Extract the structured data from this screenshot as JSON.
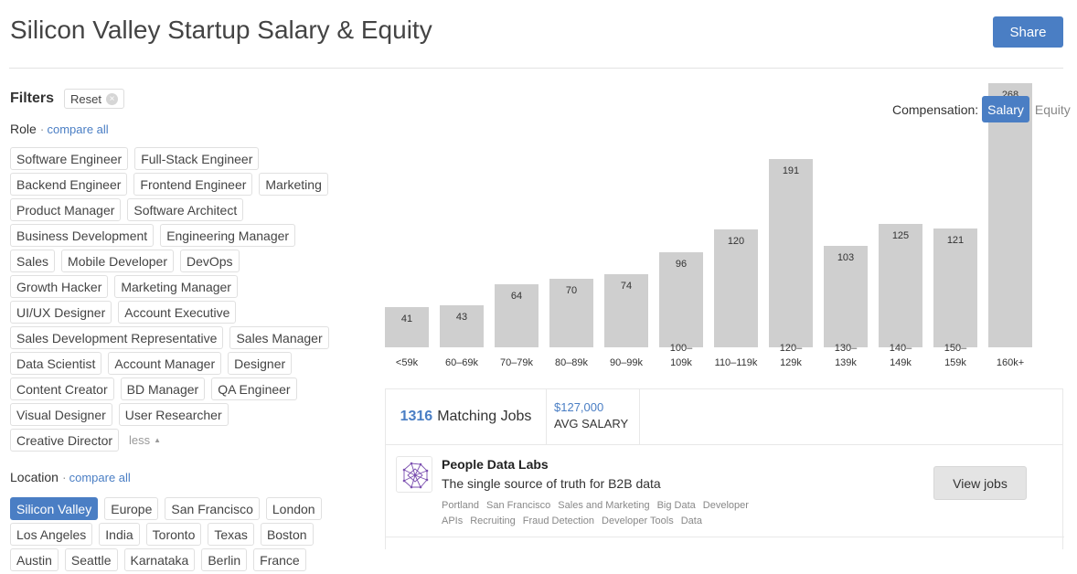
{
  "header": {
    "title": "Silicon Valley Startup Salary & Equity",
    "share_label": "Share"
  },
  "filters": {
    "title": "Filters",
    "reset_label": "Reset",
    "role": {
      "label": "Role",
      "compare_label": "compare all",
      "tags": [
        "Software Engineer",
        "Full-Stack Engineer",
        "Backend Engineer",
        "Frontend Engineer",
        "Marketing",
        "Product Manager",
        "Software Architect",
        "Business Development",
        "Engineering Manager",
        "Sales",
        "Mobile Developer",
        "DevOps",
        "Growth Hacker",
        "Marketing Manager",
        "UI/UX Designer",
        "Account Executive",
        "Sales Development Representative",
        "Sales Manager",
        "Data Scientist",
        "Account Manager",
        "Designer",
        "Content Creator",
        "BD Manager",
        "QA Engineer",
        "Visual Designer",
        "User Researcher",
        "Creative Director"
      ],
      "less_label": "less"
    },
    "location": {
      "label": "Location",
      "compare_label": "compare all",
      "selected": "Silicon Valley",
      "tags": [
        "Silicon Valley",
        "Europe",
        "San Francisco",
        "London",
        "Los Angeles",
        "India",
        "Toronto",
        "Texas",
        "Boston",
        "Austin",
        "Seattle",
        "Karnataka",
        "Berlin",
        "France"
      ]
    }
  },
  "compensation": {
    "label": "Compensation:",
    "options": [
      "Salary",
      "Equity"
    ],
    "active": "Salary"
  },
  "chart_data": {
    "type": "bar",
    "categories": [
      "<59k",
      "60–69k",
      "70–79k",
      "80–89k",
      "90–99k",
      "100–109k",
      "110–119k",
      "120–129k",
      "130–139k",
      "140–149k",
      "150–159k",
      "160k+"
    ],
    "category_lines": [
      [
        "<59k"
      ],
      [
        "60–69k"
      ],
      [
        "70–79k"
      ],
      [
        "80–89k"
      ],
      [
        "90–99k"
      ],
      [
        "100–",
        "109k"
      ],
      [
        "110–119k"
      ],
      [
        "120–",
        "129k"
      ],
      [
        "130–",
        "139k"
      ],
      [
        "140–",
        "149k"
      ],
      [
        "150–",
        "159k"
      ],
      [
        "160k+"
      ]
    ],
    "values": [
      41,
      43,
      64,
      70,
      74,
      96,
      120,
      191,
      103,
      125,
      121,
      268
    ],
    "ylim": [
      0,
      268
    ],
    "bar_color": "#cfcfcf"
  },
  "results": {
    "matching_count": "1316",
    "matching_label": "Matching Jobs",
    "avg_salary": "$127,000",
    "avg_label": "AVG SALARY"
  },
  "company": {
    "name": "People Data Labs",
    "tagline": "The single source of truth for B2B data",
    "categories": [
      "Portland",
      "San Francisco",
      "Sales and Marketing",
      "Big Data",
      "Developer APIs",
      "Recruiting",
      "Fraud Detection",
      "Developer Tools",
      "Data"
    ],
    "view_label": "View jobs"
  },
  "colors": {
    "accent": "#4a7ec4",
    "bar": "#cfcfcf"
  }
}
